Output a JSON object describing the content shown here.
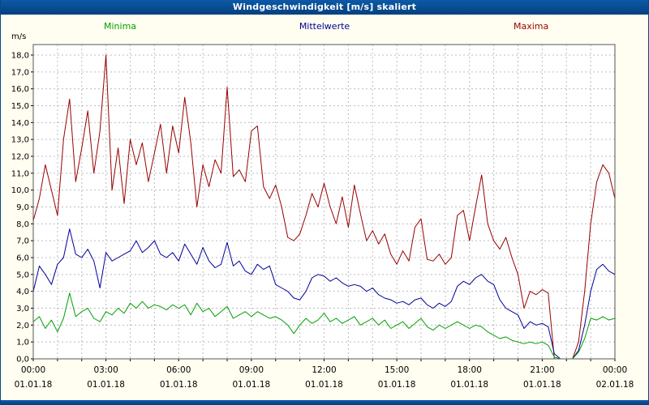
{
  "window": {
    "title": "Windgeschwindigkeit [m/s] skaliert"
  },
  "colors": {
    "titlebar": "#04498c",
    "page_background": "#fffef0",
    "plot_background": "#ffffff",
    "grid": "#bdbdbd",
    "plot_border": "#555555",
    "axis_text": "#000000",
    "minima": "#00a000",
    "mittelwerte": "#000099",
    "maxima": "#990000"
  },
  "legend": {
    "items": [
      {
        "label": "Minima",
        "color": "#00a000"
      },
      {
        "label": "Mittelwerte",
        "color": "#000099"
      },
      {
        "label": "Maxima",
        "color": "#990000"
      }
    ]
  },
  "chart_data": {
    "type": "line",
    "title": "Windgeschwindigkeit [m/s] skaliert",
    "ylabel": "m/s",
    "ylim": [
      0,
      18.5
    ],
    "grid": "dashed",
    "legend_position": "top",
    "x_unit": "hours",
    "x_start": 0,
    "x_step": 0.25,
    "y_tick_step": 1,
    "y_tick_labels": [
      "0,0",
      "1,0",
      "2,0",
      "3,0",
      "4,0",
      "5,0",
      "6,0",
      "7,0",
      "8,0",
      "9,0",
      "10,0",
      "11,0",
      "12,0",
      "13,0",
      "14,0",
      "15,0",
      "16,0",
      "17,0",
      "18,0"
    ],
    "x_axis": {
      "tick_hours": [
        0,
        3,
        6,
        9,
        12,
        15,
        18,
        21,
        24
      ],
      "time_labels": [
        "00:00",
        "03:00",
        "06:00",
        "09:00",
        "12:00",
        "15:00",
        "18:00",
        "21:00",
        "00:00"
      ],
      "date_labels": [
        "01.01.18",
        "01.01.18",
        "01.01.18",
        "01.01.18",
        "01.01.18",
        "01.01.18",
        "01.01.18",
        "01.01.18",
        "02.01.18"
      ]
    },
    "series": [
      {
        "name": "Maxima",
        "color": "#990000",
        "values": [
          8.2,
          9.5,
          11.5,
          10.0,
          8.5,
          13.0,
          15.4,
          10.5,
          12.5,
          14.7,
          11.0,
          13.5,
          18.0,
          10.0,
          12.5,
          9.2,
          13.0,
          11.5,
          12.8,
          10.5,
          12.2,
          13.9,
          11.0,
          13.8,
          12.2,
          15.5,
          12.8,
          9.0,
          11.5,
          10.2,
          11.8,
          11.0,
          16.1,
          10.8,
          11.2,
          10.5,
          13.5,
          13.8,
          10.2,
          9.5,
          10.3,
          9.0,
          7.2,
          7.0,
          7.4,
          8.5,
          9.8,
          9.0,
          10.4,
          9.0,
          8.0,
          9.6,
          7.8,
          10.3,
          8.6,
          7.0,
          7.6,
          6.8,
          7.4,
          6.2,
          5.6,
          6.4,
          5.8,
          7.8,
          8.3,
          5.9,
          5.8,
          6.2,
          5.6,
          6.0,
          8.5,
          8.8,
          7.0,
          9.0,
          10.9,
          8.0,
          7.0,
          6.5,
          7.2,
          6.0,
          5.0,
          3.0,
          4.0,
          3.8,
          4.1,
          3.9,
          0.0,
          0.0,
          0.0,
          0.0,
          1.0,
          4.0,
          8.0,
          10.5,
          11.5,
          11.0,
          9.5
        ]
      },
      {
        "name": "Mittelwerte",
        "color": "#000099",
        "values": [
          4.0,
          5.5,
          5.0,
          4.4,
          5.6,
          6.0,
          7.7,
          6.2,
          6.0,
          6.5,
          5.8,
          4.2,
          6.3,
          5.8,
          6.0,
          6.2,
          6.4,
          7.0,
          6.3,
          6.6,
          7.0,
          6.2,
          6.0,
          6.3,
          5.8,
          6.8,
          6.2,
          5.6,
          6.6,
          5.8,
          5.4,
          5.6,
          6.9,
          5.5,
          5.8,
          5.2,
          5.0,
          5.6,
          5.3,
          5.5,
          4.4,
          4.2,
          4.0,
          3.6,
          3.5,
          4.0,
          4.8,
          5.0,
          4.9,
          4.6,
          4.8,
          4.5,
          4.3,
          4.4,
          4.3,
          4.0,
          4.2,
          3.8,
          3.6,
          3.5,
          3.3,
          3.4,
          3.2,
          3.5,
          3.6,
          3.2,
          3.0,
          3.3,
          3.1,
          3.4,
          4.3,
          4.6,
          4.4,
          4.8,
          5.0,
          4.6,
          4.4,
          3.5,
          3.0,
          2.8,
          2.6,
          1.8,
          2.2,
          2.0,
          2.1,
          1.9,
          0.3,
          0.0,
          0.0,
          0.0,
          0.5,
          2.0,
          4.0,
          5.3,
          5.6,
          5.2,
          5.0
        ]
      },
      {
        "name": "Minima",
        "color": "#00a000",
        "values": [
          2.2,
          2.5,
          1.8,
          2.3,
          1.6,
          2.4,
          3.9,
          2.5,
          2.8,
          3.0,
          2.4,
          2.2,
          2.8,
          2.6,
          3.0,
          2.7,
          3.3,
          3.0,
          3.4,
          3.0,
          3.2,
          3.1,
          2.9,
          3.2,
          3.0,
          3.2,
          2.6,
          3.3,
          2.8,
          3.0,
          2.5,
          2.8,
          3.1,
          2.4,
          2.6,
          2.8,
          2.5,
          2.8,
          2.6,
          2.4,
          2.5,
          2.3,
          2.0,
          1.5,
          2.0,
          2.4,
          2.1,
          2.3,
          2.7,
          2.2,
          2.4,
          2.1,
          2.3,
          2.5,
          2.0,
          2.2,
          2.4,
          2.0,
          2.3,
          1.8,
          2.0,
          2.2,
          1.8,
          2.1,
          2.4,
          1.9,
          1.7,
          2.0,
          1.8,
          2.0,
          2.2,
          2.0,
          1.8,
          2.0,
          1.9,
          1.6,
          1.4,
          1.2,
          1.3,
          1.1,
          1.0,
          0.9,
          1.0,
          0.9,
          1.0,
          0.8,
          0.1,
          0.0,
          0.0,
          0.0,
          0.4,
          1.2,
          2.4,
          2.3,
          2.5,
          2.3,
          2.4
        ]
      }
    ]
  }
}
